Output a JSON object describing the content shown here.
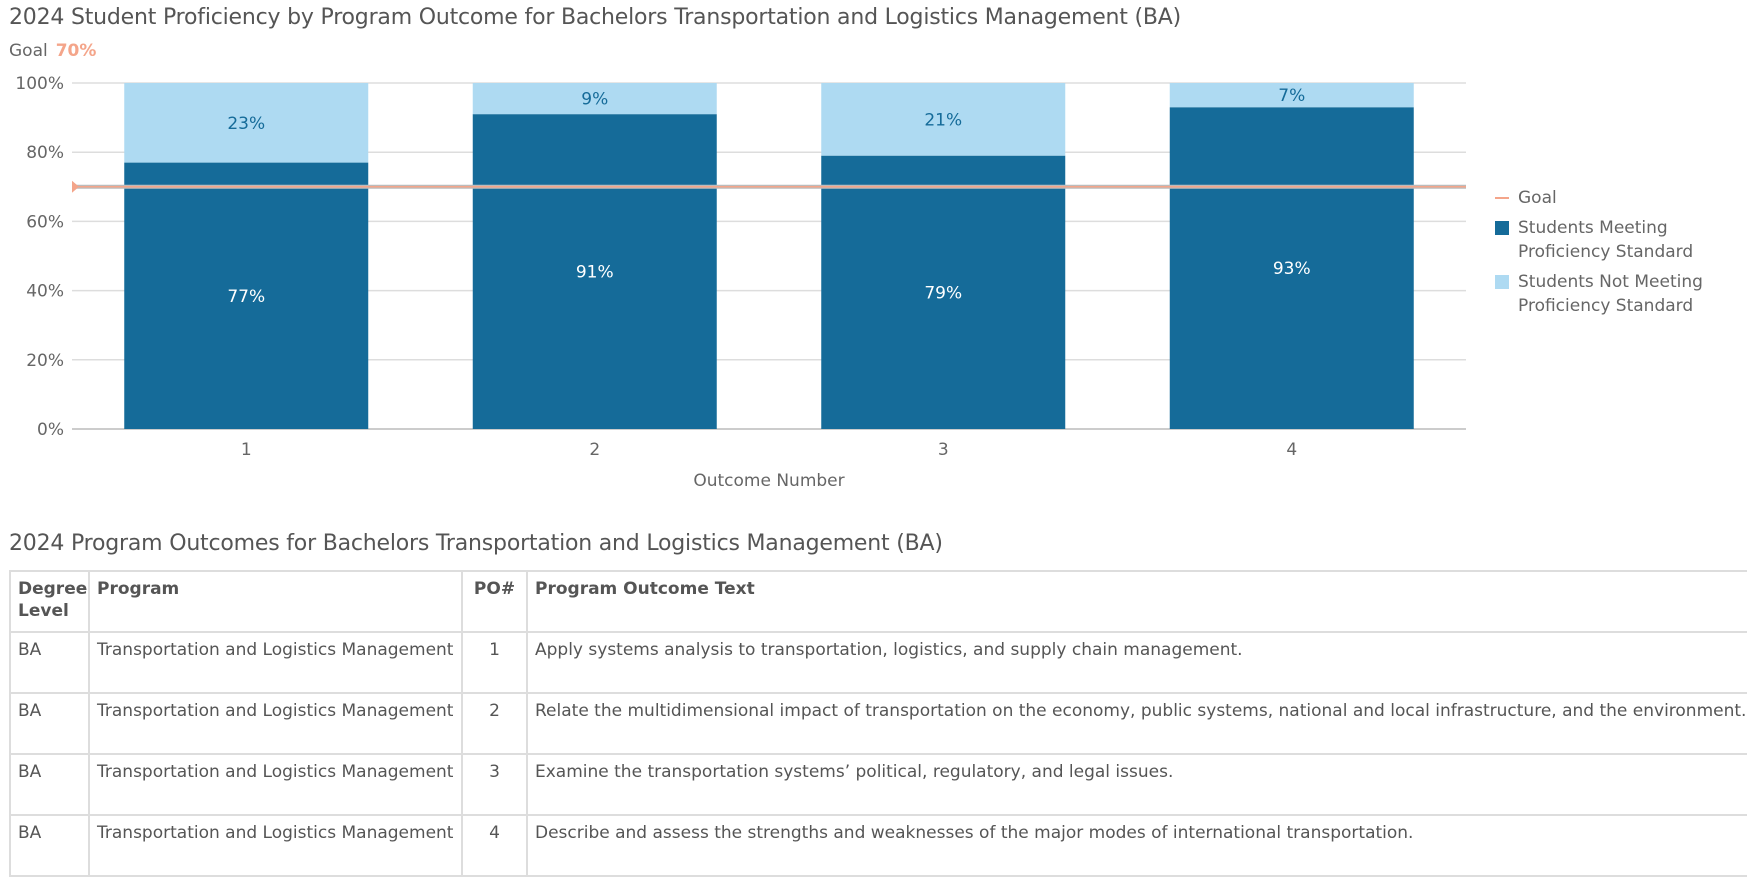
{
  "chart_data": {
    "type": "bar",
    "stacked": true,
    "title": "2024 Student Proficiency by Program Outcome for Bachelors Transportation and Logistics Management (BA)",
    "goal_label": "Goal",
    "goal_value": "70%",
    "goal": 70,
    "xlabel": "Outcome Number",
    "ylabel": "",
    "ylim": [
      0,
      100
    ],
    "yticks": [
      "0%",
      "20%",
      "40%",
      "60%",
      "80%",
      "100%"
    ],
    "categories": [
      "1",
      "2",
      "3",
      "4"
    ],
    "grid": true,
    "legend_position": "right",
    "series": [
      {
        "name": "Students Meeting Proficiency Standard",
        "values": [
          77,
          91,
          79,
          93
        ],
        "labels": [
          "77%",
          "91%",
          "79%",
          "93%"
        ],
        "color": "#156b99"
      },
      {
        "name": "Students Not Meeting Proficiency Standard",
        "values": [
          23,
          9,
          21,
          7
        ],
        "labels": [
          "23%",
          "9%",
          "21%",
          "7%"
        ],
        "color": "#aedaf2"
      }
    ],
    "legend": {
      "goal": "Goal",
      "meeting": "Students Meeting Proficiency Standard",
      "not_meeting": "Students Not Meeting Proficiency Standard"
    },
    "goal_color": "#f4a58a"
  },
  "table": {
    "title": "2024 Program Outcomes for Bachelors Transportation and Logistics Management (BA)",
    "headers": [
      "Degree Level",
      "Program",
      "PO#",
      "Program Outcome Text"
    ],
    "rows": [
      [
        "BA",
        "Transportation and Logistics Management",
        "1",
        "Apply systems analysis to transportation, logistics, and supply chain management."
      ],
      [
        "BA",
        "Transportation and Logistics Management",
        "2",
        "Relate the multidimensional impact of transportation on the economy, public systems, national and local infrastructure, and the environment."
      ],
      [
        "BA",
        "Transportation and Logistics Management",
        "3",
        "Examine the transportation systems’ political, regulatory, and legal issues."
      ],
      [
        "BA",
        "Transportation and Logistics Management",
        "4",
        "Describe and assess the strengths and weaknesses of the major modes of international transportation."
      ]
    ]
  }
}
